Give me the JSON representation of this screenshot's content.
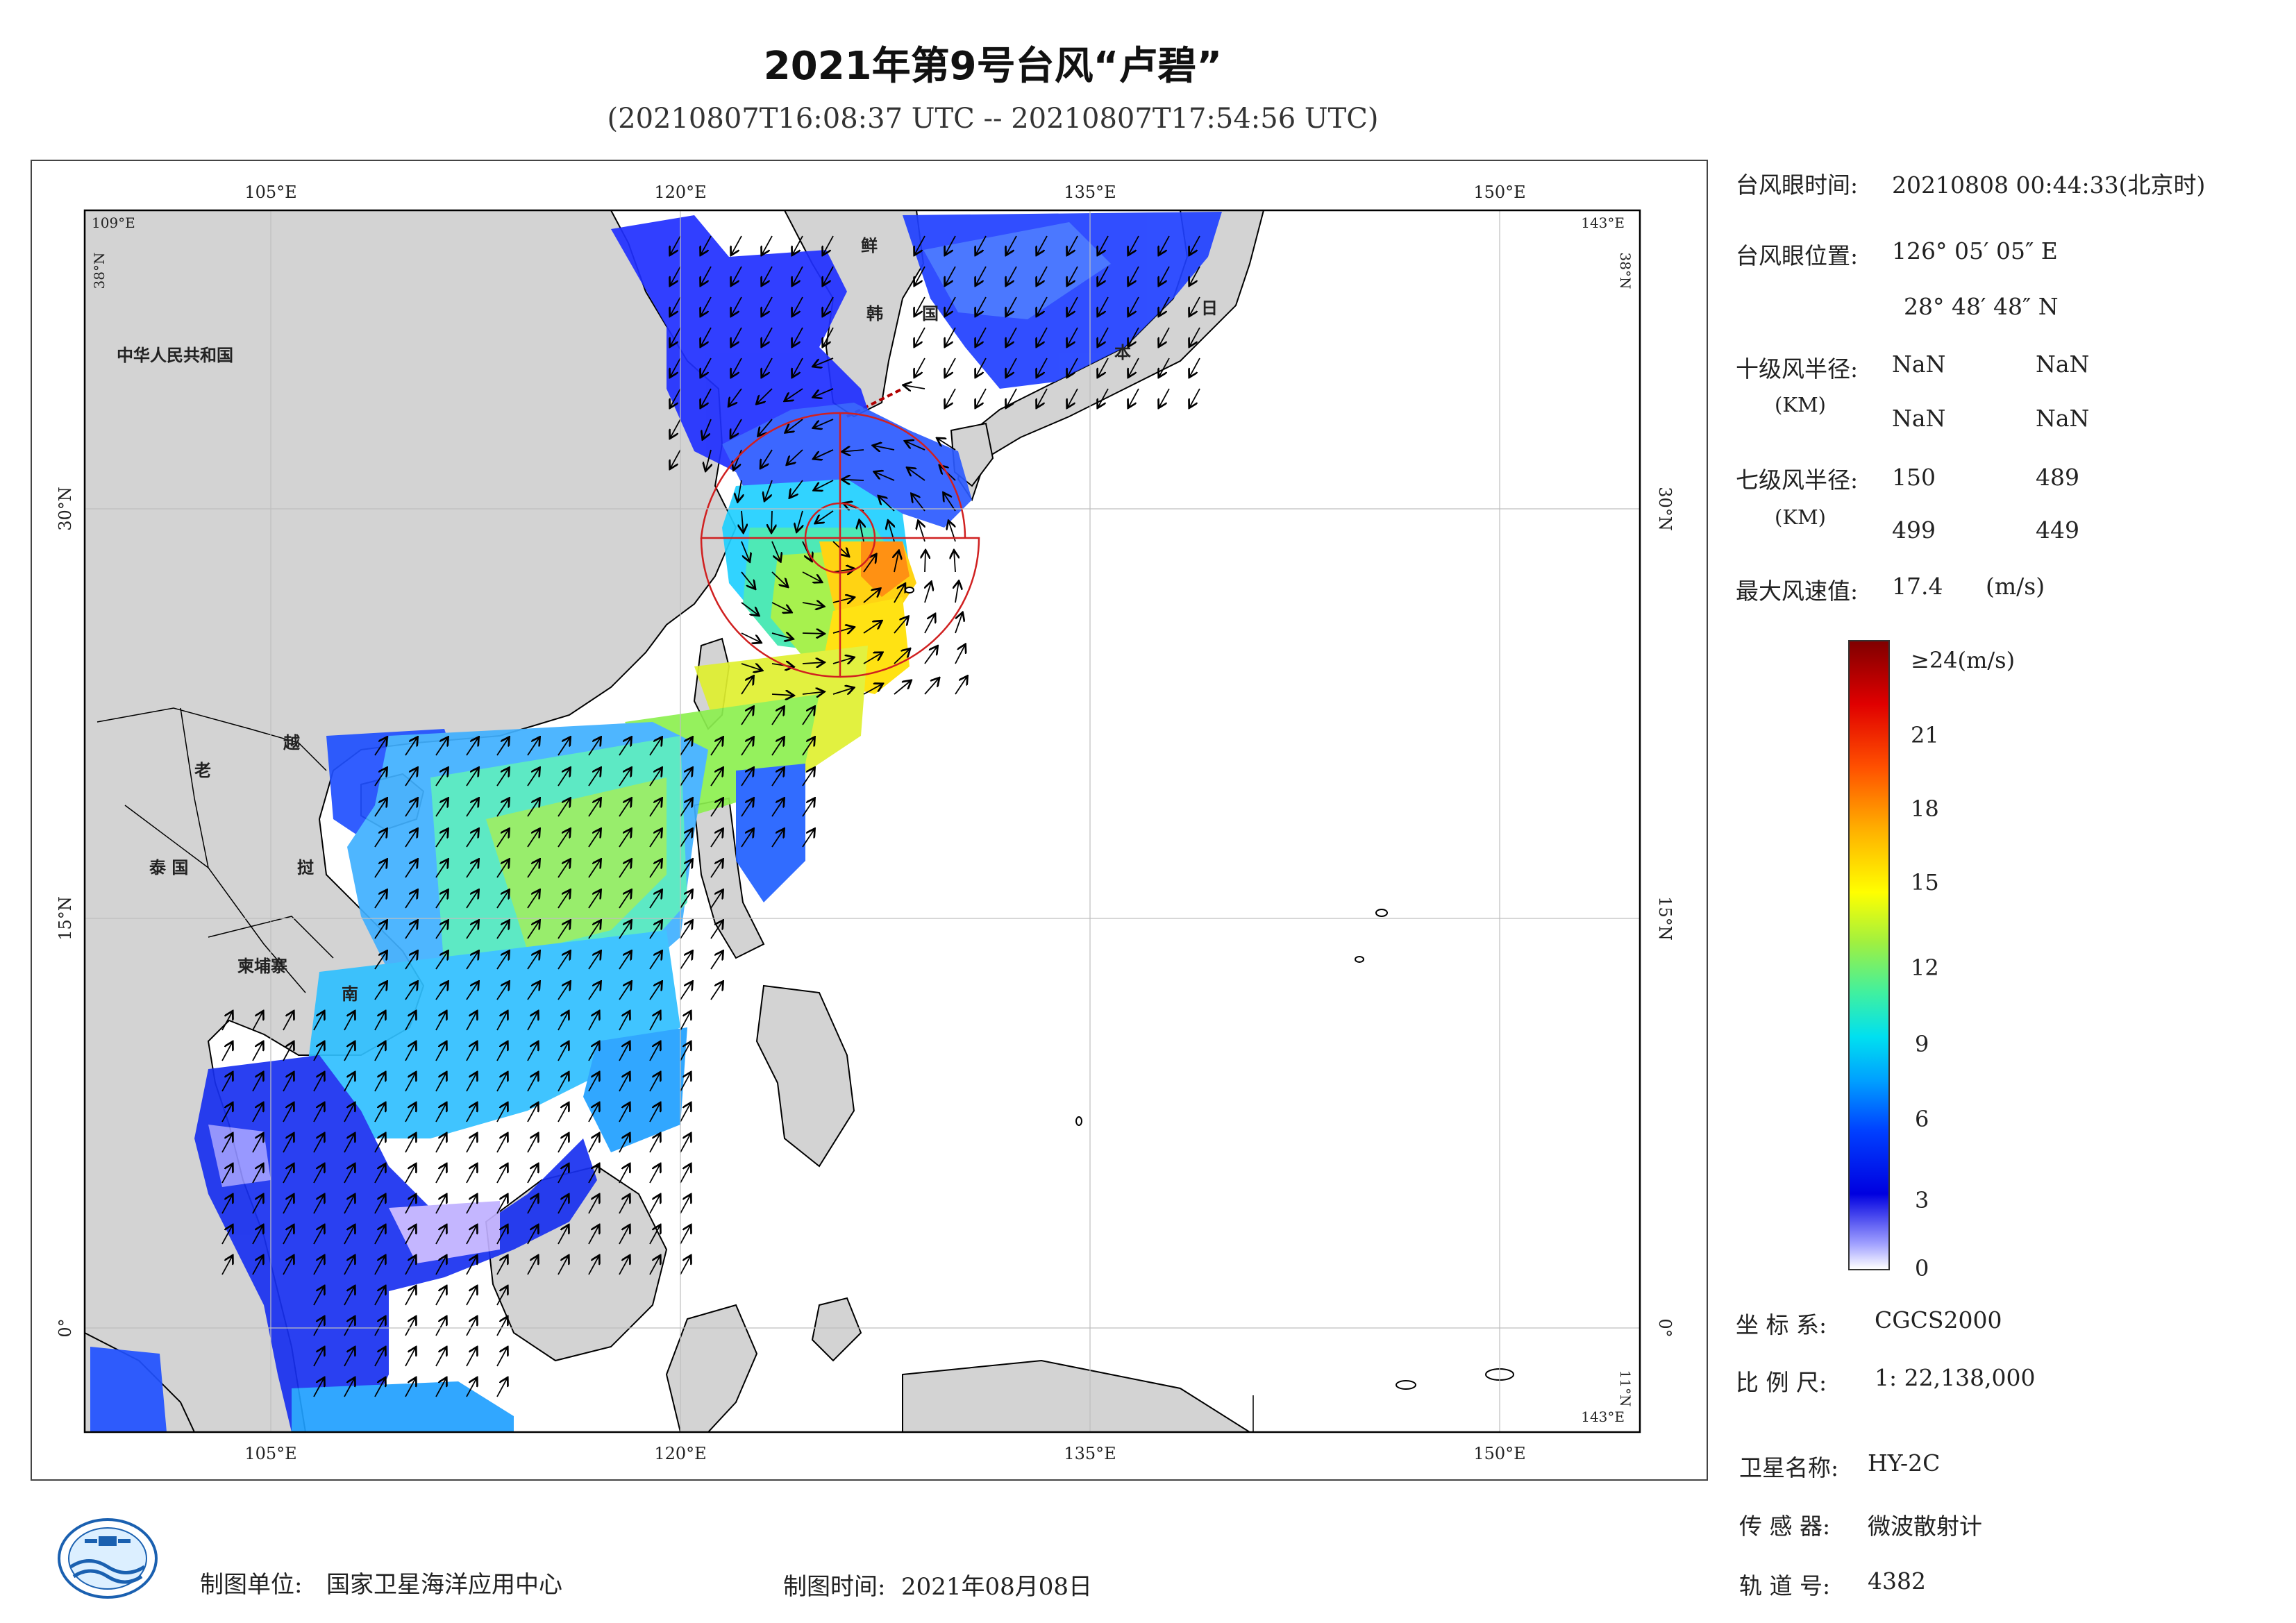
{
  "title": "2021年第9号台风“卢碧”",
  "subtitle": "(20210807T16:08:37 UTC -- 20210807T17:54:56 UTC)",
  "map": {
    "top_ticks": [
      "105°E",
      "120°E",
      "135°E",
      "150°E"
    ],
    "bottom_ticks": [
      "105°E",
      "120°E",
      "135°E",
      "150°E"
    ],
    "left_ticks": [
      "30°N",
      "15°N",
      "0°"
    ],
    "right_ticks": [
      "30°N",
      "15°N",
      "0°"
    ],
    "corner_top_left_lon": "109°E",
    "corner_top_left_lat": "38°N",
    "corner_top_right_lon": "143°E",
    "corner_top_right_lat": "38°N",
    "corner_bottom_right_lat": "11°N",
    "corner_bottom_right_lon": "143°E",
    "labels": {
      "china": "中华人民共和国",
      "korea_n": "鲜",
      "korea_s1": "韩",
      "korea_s2": "国",
      "japan1": "日",
      "japan2": "本",
      "laos": "老",
      "vietnam1": "越",
      "vietnam2": "南",
      "thailand": "泰 国",
      "cambodia": "柬埔寨",
      "vietnam3": "挝"
    },
    "colors": {
      "land": "#d3d3d3",
      "sea": "#ffffff",
      "typhoon_circle": "#d02020"
    }
  },
  "info": {
    "eye_time_label": "台风眼时间:",
    "eye_time_value": "20210808 00:44:33(北京时)",
    "eye_pos_label": "台风眼位置:",
    "eye_pos_lon": "126° 05′ 05″ E",
    "eye_pos_lat": "28° 48′ 48″ N",
    "r10_label": "十级风半径:",
    "r10_unit": "(KM)",
    "r10_values": [
      "NaN",
      "NaN",
      "NaN",
      "NaN"
    ],
    "r7_label": "七级风半径:",
    "r7_unit": "(KM)",
    "r7_values": [
      "150",
      "489",
      "499",
      "449"
    ],
    "max_wind_label": "最大风速值:",
    "max_wind_value": "17.4",
    "max_wind_unit": "(m/s)"
  },
  "colorbar": {
    "top_label": "≥24(m/s)",
    "ticks": [
      "21",
      "18",
      "15",
      "12",
      "9",
      "6",
      "3",
      "0"
    ]
  },
  "meta": {
    "coord_label": "坐 标 系:",
    "coord_value": "CGCS2000",
    "scale_label": "比 例 尺:",
    "scale_value": "1: 22,138,000",
    "sat_label": "卫星名称:",
    "sat_value": "HY-2C",
    "sensor_label": "传 感 器:",
    "sensor_value": "微波散射计",
    "orbit_label": "轨 道 号:",
    "orbit_value": "4382"
  },
  "footer": {
    "maker_label": "制图单位:",
    "maker_value": "国家卫星海洋应用中心",
    "date_label": "制图时间:",
    "date_value": "2021年08月08日"
  }
}
